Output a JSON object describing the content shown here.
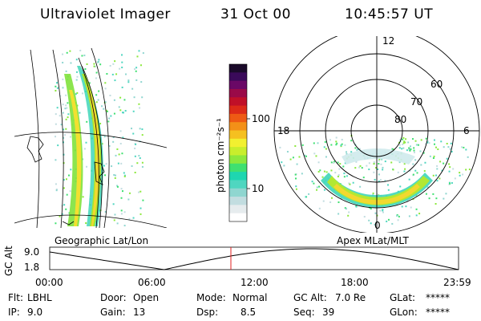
{
  "header": {
    "instrument": "Ultraviolet Imager",
    "date": "31 Oct 00",
    "time": "10:45:57 UT"
  },
  "colorbar": {
    "label": "photon cm⁻²s⁻¹",
    "ticks": [
      "100",
      "10"
    ],
    "colors": [
      "#ffffff",
      "#e6ecee",
      "#c2dde0",
      "#8fd6d0",
      "#4fd6c0",
      "#1ed6b0",
      "#3fe070",
      "#8ce83c",
      "#c8ee2c",
      "#f2f030",
      "#f5c020",
      "#f39018",
      "#ee5a14",
      "#dc2a18",
      "#c01028",
      "#9a0a48",
      "#6a0866",
      "#3a0a5a",
      "#1a0a2a"
    ]
  },
  "map": {
    "left_caption": "Geographic Lat/Lon",
    "right_caption": "Apex MLat/MLT",
    "polar_lat_labels": [
      "60",
      "70",
      "80"
    ],
    "polar_mlt_labels": [
      "12",
      "18",
      "6",
      "0"
    ]
  },
  "altitude_plot": {
    "ylabel": "GC Alt",
    "y_ticks": [
      "9.0",
      "1.8"
    ],
    "x_ticks": [
      "00:00",
      "06:00",
      "12:00",
      "18:00",
      "23:59"
    ],
    "current_marker_color": "#e02020"
  },
  "status": {
    "flt": {
      "label": "Flt:",
      "value": "LBHL"
    },
    "ip": {
      "label": "IP:",
      "value": "9.0"
    },
    "door": {
      "label": "Door:",
      "value": "Open"
    },
    "gain": {
      "label": "Gain:",
      "value": "13"
    },
    "mode": {
      "label": "Mode:",
      "value": "Normal"
    },
    "dsp": {
      "label": "Dsp:",
      "value": "8.5"
    },
    "gcalt": {
      "label": "GC Alt:",
      "value": "7.0 Re"
    },
    "seq": {
      "label": "Seq:",
      "value": "39"
    },
    "glat": {
      "label": "GLat:",
      "value": "*****"
    },
    "glon": {
      "label": "GLon:",
      "value": "*****"
    }
  }
}
